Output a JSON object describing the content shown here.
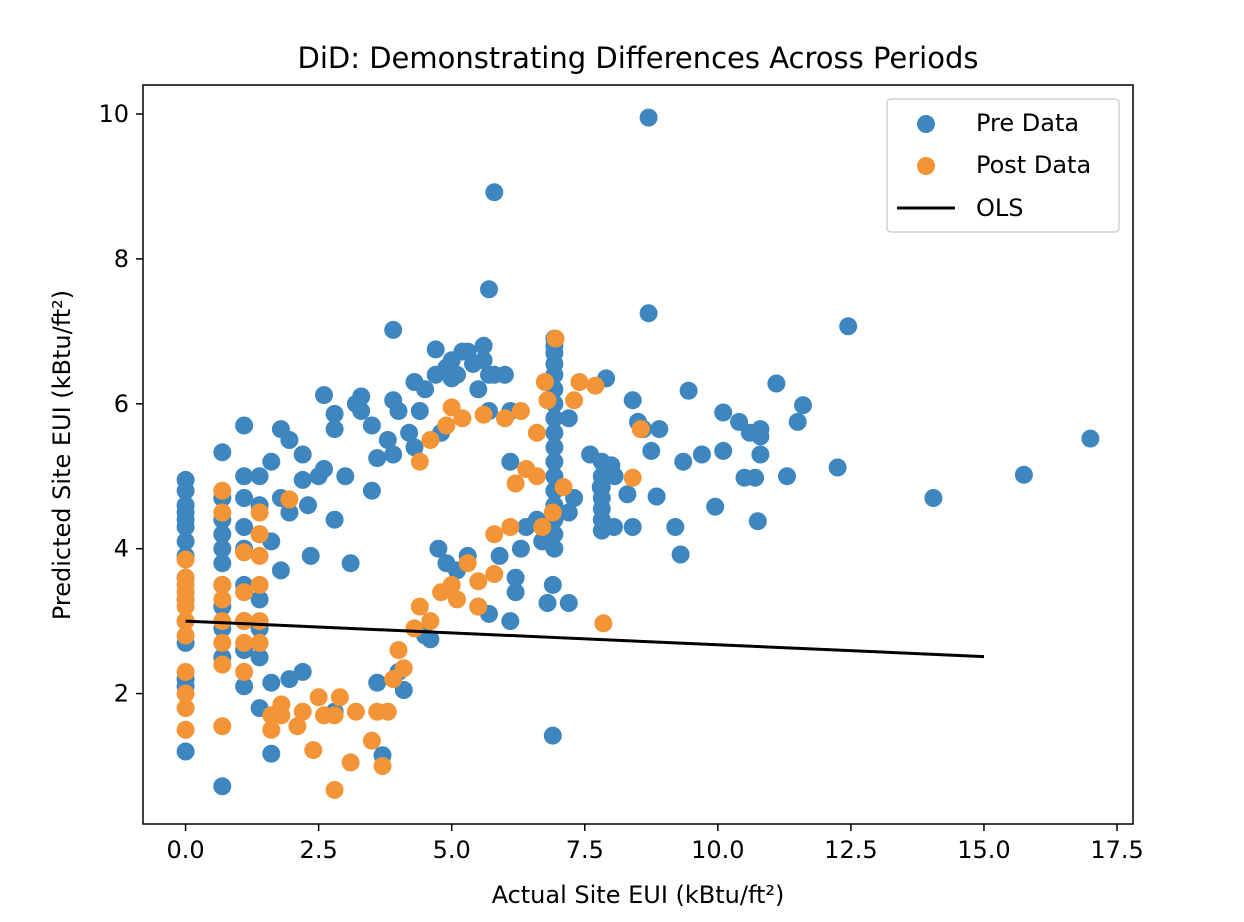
{
  "chart_data": {
    "type": "scatter",
    "title": "DiD: Demonstrating Differences Across Periods",
    "xlabel": "Actual Site EUI (kBtu/ft²)",
    "ylabel": "Predicted Site EUI (kBtu/ft²)",
    "xlim": [
      -0.8,
      17.8
    ],
    "ylim": [
      0.2,
      10.4
    ],
    "xticks": [
      0,
      2.5,
      5,
      7.5,
      10,
      12.5,
      15,
      17.5
    ],
    "xtick_labels": [
      "0.0",
      "2.5",
      "5.0",
      "7.5",
      "10.0",
      "12.5",
      "15.0",
      "17.5"
    ],
    "yticks": [
      2,
      4,
      6,
      8,
      10
    ],
    "ytick_labels": [
      "2",
      "4",
      "6",
      "8",
      "10"
    ],
    "legend_position": "top-right",
    "colors": {
      "pre": "#3e86bf",
      "post": "#f39536",
      "ols": "#000000"
    },
    "legend": {
      "pre_label": "Pre Data",
      "post_label": "Post Data",
      "ols_label": "OLS"
    },
    "series": [
      {
        "name": "Pre Data",
        "kind": "scatter",
        "points": [
          [
            0,
            4.95
          ],
          [
            0,
            4.8
          ],
          [
            0,
            4.6
          ],
          [
            0,
            4.5
          ],
          [
            0,
            4.4
          ],
          [
            0,
            4.3
          ],
          [
            0,
            4.1
          ],
          [
            0,
            3.9
          ],
          [
            0,
            3.6
          ],
          [
            0,
            3.3
          ],
          [
            0,
            3.0
          ],
          [
            0,
            2.7
          ],
          [
            0,
            2.2
          ],
          [
            0,
            2.1
          ],
          [
            0,
            1.2
          ],
          [
            0.69,
            5.33
          ],
          [
            0.69,
            4.7
          ],
          [
            0.69,
            4.4
          ],
          [
            0.69,
            4.2
          ],
          [
            0.69,
            4.0
          ],
          [
            0.69,
            3.8
          ],
          [
            0.69,
            3.5
          ],
          [
            0.69,
            3.2
          ],
          [
            0.69,
            2.9
          ],
          [
            0.69,
            2.5
          ],
          [
            0.69,
            0.72
          ],
          [
            1.1,
            5.7
          ],
          [
            1.1,
            5.0
          ],
          [
            1.1,
            4.7
          ],
          [
            1.1,
            4.3
          ],
          [
            1.1,
            4.0
          ],
          [
            1.1,
            3.5
          ],
          [
            1.1,
            3.0
          ],
          [
            1.1,
            2.6
          ],
          [
            1.1,
            2.1
          ],
          [
            1.39,
            5.0
          ],
          [
            1.39,
            4.6
          ],
          [
            1.39,
            4.2
          ],
          [
            1.39,
            3.3
          ],
          [
            1.39,
            2.9
          ],
          [
            1.39,
            2.5
          ],
          [
            1.39,
            1.8
          ],
          [
            1.61,
            5.2
          ],
          [
            1.61,
            4.1
          ],
          [
            1.61,
            2.15
          ],
          [
            1.61,
            1.17
          ],
          [
            1.79,
            5.65
          ],
          [
            1.79,
            4.7
          ],
          [
            1.79,
            3.7
          ],
          [
            1.95,
            5.5
          ],
          [
            1.95,
            4.5
          ],
          [
            1.95,
            2.2
          ],
          [
            2.2,
            5.3
          ],
          [
            2.2,
            4.95
          ],
          [
            2.2,
            2.3
          ],
          [
            2.3,
            4.6
          ],
          [
            2.35,
            3.9
          ],
          [
            2.5,
            5.0
          ],
          [
            2.6,
            6.12
          ],
          [
            2.6,
            5.1
          ],
          [
            2.8,
            5.86
          ],
          [
            2.8,
            5.65
          ],
          [
            2.8,
            4.4
          ],
          [
            2.8,
            1.75
          ],
          [
            2.8,
            1.75
          ],
          [
            3.0,
            5.0
          ],
          [
            3.1,
            3.8
          ],
          [
            3.2,
            6.0
          ],
          [
            3.3,
            6.1
          ],
          [
            3.3,
            5.9
          ],
          [
            3.5,
            5.7
          ],
          [
            3.5,
            4.8
          ],
          [
            3.6,
            5.25
          ],
          [
            3.6,
            2.15
          ],
          [
            3.7,
            1.15
          ],
          [
            3.8,
            5.5
          ],
          [
            3.9,
            6.05
          ],
          [
            3.9,
            5.3
          ],
          [
            3.9,
            7.02
          ],
          [
            4.0,
            5.9
          ],
          [
            4.0,
            2.3
          ],
          [
            4.1,
            2.05
          ],
          [
            4.2,
            5.6
          ],
          [
            4.3,
            6.3
          ],
          [
            4.3,
            5.4
          ],
          [
            4.4,
            5.9
          ],
          [
            4.5,
            6.2
          ],
          [
            4.5,
            2.8
          ],
          [
            4.6,
            2.75
          ],
          [
            4.7,
            6.4
          ],
          [
            4.7,
            6.75
          ],
          [
            4.8,
            5.6
          ],
          [
            4.9,
            6.5
          ],
          [
            5.0,
            6.35
          ],
          [
            5.0,
            6.6
          ],
          [
            5.1,
            6.4
          ],
          [
            5.2,
            6.72
          ],
          [
            5.3,
            6.72
          ],
          [
            5.4,
            6.55
          ],
          [
            5.5,
            6.2
          ],
          [
            5.5,
            3.2
          ],
          [
            5.6,
            6.6
          ],
          [
            5.6,
            6.8
          ],
          [
            5.7,
            6.4
          ],
          [
            5.7,
            5.9
          ],
          [
            5.7,
            3.1
          ],
          [
            5.8,
            6.4
          ],
          [
            6.0,
            6.4
          ],
          [
            6.1,
            5.9
          ],
          [
            6.1,
            5.2
          ],
          [
            6.1,
            3.0
          ],
          [
            4.75,
            4.0
          ],
          [
            4.9,
            3.8
          ],
          [
            5.1,
            3.7
          ],
          [
            5.3,
            3.9
          ],
          [
            5.9,
            3.9
          ],
          [
            6.2,
            3.6
          ],
          [
            6.2,
            3.4
          ],
          [
            6.3,
            4.0
          ],
          [
            6.4,
            4.3
          ],
          [
            6.6,
            4.4
          ],
          [
            6.7,
            4.1
          ],
          [
            6.8,
            3.25
          ],
          [
            6.9,
            1.42
          ],
          [
            6.9,
            3.5
          ],
          [
            7.2,
            3.25
          ],
          [
            6.93,
            6.9
          ],
          [
            6.93,
            6.8
          ],
          [
            6.93,
            6.7
          ],
          [
            6.93,
            6.55
          ],
          [
            6.93,
            6.4
          ],
          [
            6.93,
            6.2
          ],
          [
            6.93,
            6.0
          ],
          [
            6.93,
            5.8
          ],
          [
            6.93,
            5.6
          ],
          [
            6.93,
            5.4
          ],
          [
            6.93,
            5.2
          ],
          [
            6.93,
            5.0
          ],
          [
            6.93,
            4.8
          ],
          [
            6.93,
            4.6
          ],
          [
            6.93,
            4.4
          ],
          [
            6.93,
            4.2
          ],
          [
            6.93,
            4.0
          ],
          [
            7.2,
            5.8
          ],
          [
            7.2,
            4.5
          ],
          [
            7.3,
            4.7
          ],
          [
            7.6,
            5.3
          ],
          [
            7.8,
            4.85
          ],
          [
            7.9,
            6.35
          ],
          [
            8.0,
            5.15
          ],
          [
            8.05,
            4.3
          ],
          [
            8.06,
            5.0
          ],
          [
            7.82,
            5.2
          ],
          [
            7.82,
            5.0
          ],
          [
            7.82,
            4.85
          ],
          [
            7.82,
            4.7
          ],
          [
            7.82,
            4.55
          ],
          [
            7.82,
            4.4
          ],
          [
            7.82,
            4.25
          ],
          [
            8.3,
            4.75
          ],
          [
            8.4,
            4.3
          ],
          [
            8.4,
            6.05
          ],
          [
            8.5,
            5.75
          ],
          [
            8.6,
            5.65
          ],
          [
            8.7,
            9.95
          ],
          [
            8.7,
            7.25
          ],
          [
            8.75,
            5.35
          ],
          [
            8.85,
            4.72
          ],
          [
            8.9,
            5.65
          ],
          [
            9.2,
            4.3
          ],
          [
            9.3,
            3.92
          ],
          [
            9.35,
            5.2
          ],
          [
            9.45,
            6.18
          ],
          [
            9.7,
            5.3
          ],
          [
            9.95,
            4.58
          ],
          [
            10.1,
            5.35
          ],
          [
            10.1,
            5.88
          ],
          [
            10.4,
            5.75
          ],
          [
            10.5,
            4.98
          ],
          [
            10.6,
            5.6
          ],
          [
            10.7,
            4.98
          ],
          [
            10.75,
            4.38
          ],
          [
            10.8,
            5.3
          ],
          [
            10.8,
            5.55
          ],
          [
            10.8,
            5.65
          ],
          [
            11.1,
            6.28
          ],
          [
            11.3,
            5.0
          ],
          [
            11.5,
            5.75
          ],
          [
            11.6,
            5.98
          ],
          [
            12.25,
            5.12
          ],
          [
            12.45,
            7.07
          ],
          [
            14.05,
            4.7
          ],
          [
            15.75,
            5.02
          ],
          [
            17.0,
            5.52
          ],
          [
            5.8,
            8.92
          ],
          [
            5.7,
            7.58
          ]
        ]
      },
      {
        "name": "Post Data",
        "kind": "scatter",
        "points": [
          [
            0,
            3.85
          ],
          [
            0,
            3.6
          ],
          [
            0,
            3.5
          ],
          [
            0,
            3.4
          ],
          [
            0,
            3.3
          ],
          [
            0,
            3.2
          ],
          [
            0,
            3.0
          ],
          [
            0,
            2.8
          ],
          [
            0,
            2.3
          ],
          [
            0,
            2.0
          ],
          [
            0,
            1.8
          ],
          [
            0,
            1.5
          ],
          [
            0.69,
            4.8
          ],
          [
            0.69,
            4.5
          ],
          [
            0.69,
            3.5
          ],
          [
            0.69,
            3.3
          ],
          [
            0.69,
            3.0
          ],
          [
            0.69,
            2.7
          ],
          [
            0.69,
            2.4
          ],
          [
            0.69,
            1.55
          ],
          [
            1.1,
            3.95
          ],
          [
            1.1,
            3.4
          ],
          [
            1.1,
            3.0
          ],
          [
            1.1,
            2.7
          ],
          [
            1.1,
            2.3
          ],
          [
            1.39,
            4.5
          ],
          [
            1.39,
            4.2
          ],
          [
            1.39,
            3.9
          ],
          [
            1.39,
            3.5
          ],
          [
            1.39,
            3.0
          ],
          [
            1.39,
            2.7
          ],
          [
            1.61,
            1.7
          ],
          [
            1.61,
            1.5
          ],
          [
            1.8,
            1.85
          ],
          [
            1.8,
            1.7
          ],
          [
            1.95,
            4.68
          ],
          [
            2.1,
            1.55
          ],
          [
            2.2,
            1.75
          ],
          [
            2.4,
            1.22
          ],
          [
            2.5,
            1.95
          ],
          [
            2.6,
            1.7
          ],
          [
            2.8,
            1.7
          ],
          [
            2.8,
            0.67
          ],
          [
            2.9,
            1.95
          ],
          [
            3.1,
            1.05
          ],
          [
            3.2,
            1.75
          ],
          [
            3.5,
            1.35
          ],
          [
            3.6,
            1.75
          ],
          [
            3.7,
            1.0
          ],
          [
            3.8,
            1.75
          ],
          [
            3.9,
            2.2
          ],
          [
            4.0,
            2.6
          ],
          [
            4.1,
            2.35
          ],
          [
            4.3,
            2.9
          ],
          [
            4.4,
            3.2
          ],
          [
            4.6,
            3.0
          ],
          [
            4.8,
            3.4
          ],
          [
            5.0,
            3.5
          ],
          [
            5.1,
            3.3
          ],
          [
            5.3,
            3.8
          ],
          [
            5.5,
            3.55
          ],
          [
            5.5,
            3.2
          ],
          [
            5.8,
            3.65
          ],
          [
            5.8,
            4.2
          ],
          [
            6.1,
            4.3
          ],
          [
            6.2,
            4.9
          ],
          [
            6.4,
            5.1
          ],
          [
            6.6,
            5.0
          ],
          [
            6.7,
            4.3
          ],
          [
            6.9,
            4.5
          ],
          [
            7.1,
            4.85
          ],
          [
            6.6,
            5.6
          ],
          [
            6.8,
            6.05
          ],
          [
            6.75,
            6.3
          ],
          [
            6.95,
            6.9
          ],
          [
            7.3,
            6.05
          ],
          [
            7.4,
            6.3
          ],
          [
            7.7,
            6.25
          ],
          [
            7.85,
            2.97
          ],
          [
            8.4,
            4.98
          ],
          [
            8.55,
            5.65
          ],
          [
            5.0,
            5.95
          ],
          [
            5.2,
            5.8
          ],
          [
            5.6,
            5.85
          ],
          [
            6.0,
            5.8
          ],
          [
            6.3,
            5.9
          ],
          [
            4.4,
            5.2
          ],
          [
            4.6,
            5.5
          ],
          [
            4.9,
            5.7
          ]
        ]
      },
      {
        "name": "OLS",
        "kind": "line",
        "points": [
          [
            0,
            3.0
          ],
          [
            15,
            2.51
          ]
        ]
      }
    ]
  }
}
